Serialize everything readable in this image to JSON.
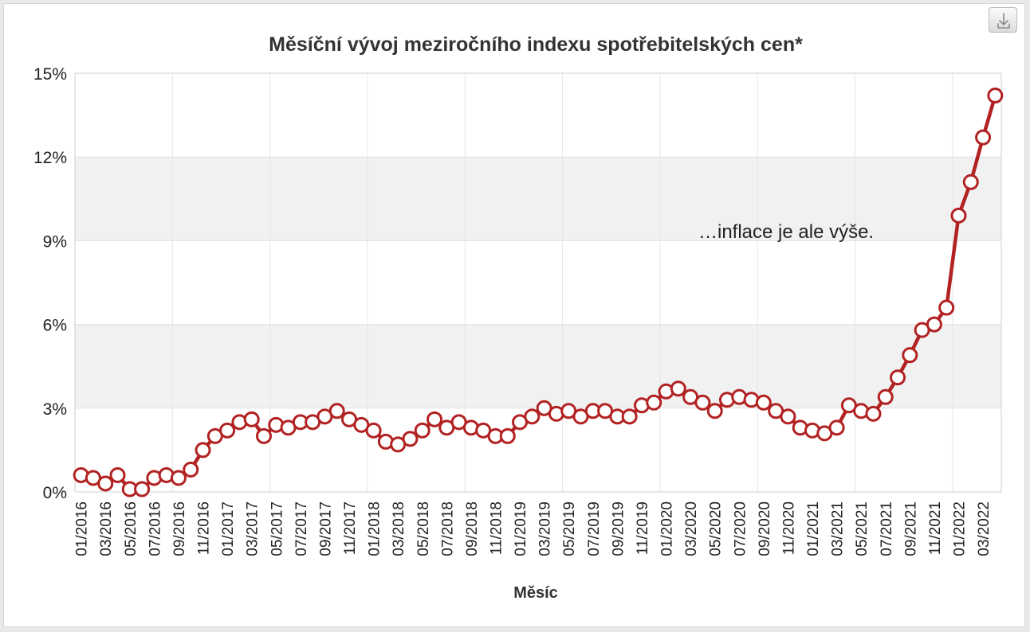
{
  "chart_data": {
    "type": "line",
    "title": "Měsíční vývoj meziročního indexu spotřebitelských cen*",
    "xlabel": "Měsíc",
    "ylabel": "",
    "ylim": [
      0,
      15
    ],
    "yticks": [
      0,
      3,
      6,
      9,
      12,
      15
    ],
    "ytick_labels": [
      "0%",
      "3%",
      "6%",
      "9%",
      "12%",
      "15%"
    ],
    "banded_rows": true,
    "grid": true,
    "annotation": "…inflace je ale výše.",
    "categories": [
      "01/2016",
      "02/2016",
      "03/2016",
      "04/2016",
      "05/2016",
      "06/2016",
      "07/2016",
      "08/2016",
      "09/2016",
      "10/2016",
      "11/2016",
      "12/2016",
      "01/2017",
      "02/2017",
      "03/2017",
      "04/2017",
      "05/2017",
      "06/2017",
      "07/2017",
      "08/2017",
      "09/2017",
      "10/2017",
      "11/2017",
      "12/2017",
      "01/2018",
      "02/2018",
      "03/2018",
      "04/2018",
      "05/2018",
      "06/2018",
      "07/2018",
      "08/2018",
      "09/2018",
      "10/2018",
      "11/2018",
      "12/2018",
      "01/2019",
      "02/2019",
      "03/2019",
      "04/2019",
      "05/2019",
      "06/2019",
      "07/2019",
      "08/2019",
      "09/2019",
      "10/2019",
      "11/2019",
      "12/2019",
      "01/2020",
      "02/2020",
      "03/2020",
      "04/2020",
      "05/2020",
      "06/2020",
      "07/2020",
      "08/2020",
      "09/2020",
      "10/2020",
      "11/2020",
      "12/2020",
      "01/2021",
      "02/2021",
      "03/2021",
      "04/2021",
      "05/2021",
      "06/2021",
      "07/2021",
      "08/2021",
      "09/2021",
      "10/2021",
      "11/2021",
      "12/2021",
      "01/2022",
      "02/2022",
      "03/2022",
      "04/2022"
    ],
    "series": [
      {
        "color": "#b22222",
        "values": [
          0.6,
          0.5,
          0.3,
          0.6,
          0.1,
          0.1,
          0.5,
          0.6,
          0.5,
          0.8,
          1.5,
          2.0,
          2.2,
          2.5,
          2.6,
          2.0,
          2.4,
          2.3,
          2.5,
          2.5,
          2.7,
          2.9,
          2.6,
          2.4,
          2.2,
          1.8,
          1.7,
          1.9,
          2.2,
          2.6,
          2.3,
          2.5,
          2.3,
          2.2,
          2.0,
          2.0,
          2.5,
          2.7,
          3.0,
          2.8,
          2.9,
          2.7,
          2.9,
          2.9,
          2.7,
          2.7,
          3.1,
          3.2,
          3.6,
          3.7,
          3.4,
          3.2,
          2.9,
          3.3,
          3.4,
          3.3,
          3.2,
          2.9,
          2.7,
          2.3,
          2.2,
          2.1,
          2.3,
          3.1,
          2.9,
          2.8,
          3.4,
          4.1,
          4.9,
          5.8,
          6.0,
          6.6,
          9.9,
          11.1,
          12.7,
          14.2
        ]
      }
    ]
  },
  "export_button": {
    "icon": "download-icon"
  }
}
